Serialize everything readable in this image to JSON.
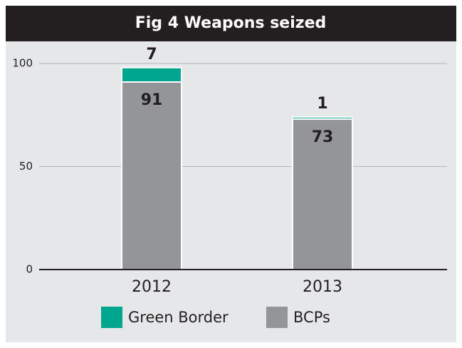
{
  "chart_data": {
    "type": "stacked_bar",
    "title": "Fig 4 Weapons seized",
    "categories": [
      "2012",
      "2013"
    ],
    "series": [
      {
        "name": "BCPs",
        "color": "#949599",
        "values": [
          91,
          73
        ]
      },
      {
        "name": "Green Border",
        "color": "#00a78e",
        "values": [
          7,
          1
        ]
      }
    ],
    "ylim": [
      0,
      100
    ],
    "yticks": [
      0,
      50,
      100
    ],
    "grid": true,
    "legend": "bottom"
  }
}
